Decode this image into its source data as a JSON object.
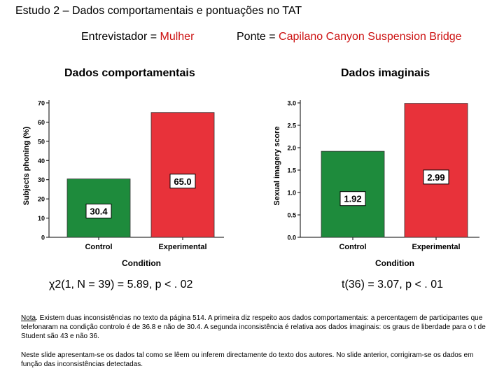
{
  "header": {
    "title": "Estudo 2 – Dados comportamentais e pontuações no TAT",
    "interviewer_label": "Entrevistador = ",
    "interviewer_value": "Mulher",
    "bridge_label": "Ponte = ",
    "bridge_value": "Capilano Canyon Suspension Bridge"
  },
  "colors": {
    "control": "#1e8b3c",
    "experimental": "#e8323a",
    "highlight": "#cc1111"
  },
  "chart_data": [
    {
      "type": "bar",
      "title": "Dados comportamentais",
      "xlabel": "Condition",
      "ylabel": "Subjects phoning (%)",
      "categories": [
        "Control",
        "Experimental"
      ],
      "values": [
        30.4,
        65.0
      ],
      "value_labels": [
        "30.4",
        "65.0"
      ],
      "ylim": [
        0,
        70
      ],
      "yticks": [
        "0",
        "10",
        "20",
        "30",
        "40",
        "50",
        "60",
        "70"
      ],
      "stat": "χ2(1, N = 39) = 5.89, p < . 02"
    },
    {
      "type": "bar",
      "title": "Dados imaginais",
      "xlabel": "Condition",
      "ylabel": "Sexual imagery score",
      "categories": [
        "Control",
        "Experimental"
      ],
      "values": [
        1.92,
        2.99
      ],
      "value_labels": [
        "1.92",
        "2.99"
      ],
      "ylim": [
        0,
        3.0
      ],
      "yticks": [
        "0.0",
        "0.5",
        "1.0",
        "1.5",
        "2.0",
        "2.5",
        "3.0"
      ],
      "stat": "t(36) = 3.07, p < . 01"
    }
  ],
  "notes": {
    "note_label": "Nota",
    "note_text": ". Existem duas inconsistências no texto da página 514. A primeira diz respeito aos dados comportamentais: a percentagem de participantes que telefonaram na condição controlo é de 36.8 e não de 30.4. A segunda inconsistência é relativa aos dados imaginais: os graus de liberdade para o t de Student são 43 e não 36.",
    "second_note": "Neste slide apresentam-se os dados tal como se lêem ou inferem directamente do texto dos autores. No slide anterior, corrigiram-se os dados em função das inconsistências detectadas."
  }
}
